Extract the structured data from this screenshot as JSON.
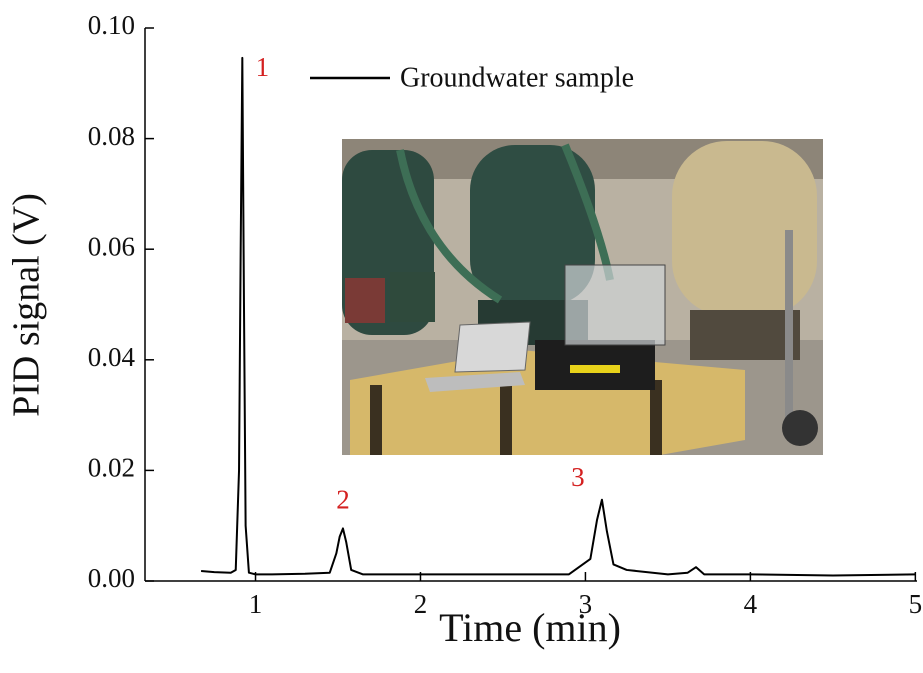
{
  "chart_data": {
    "type": "line",
    "xlabel": "Time (min)",
    "ylabel": "PID signal (V)",
    "xlim": [
      0.33,
      5.01
    ],
    "ylim": [
      0,
      0.1
    ],
    "xticks": [
      1,
      2,
      3,
      4,
      5
    ],
    "yticks": [
      {
        "value": 0,
        "label": "0.00"
      },
      0.02,
      0.04,
      0.06,
      0.08,
      {
        "value": 0.1,
        "label": "0.10"
      }
    ],
    "annotations": [
      "1",
      "2",
      "3"
    ],
    "annotation_color": "#d42020",
    "legend": "upper right",
    "series": [
      {
        "name": "Groundwater sample",
        "color": "#000000",
        "x": [
          0.67,
          0.75,
          0.85,
          0.88,
          0.9,
          0.91,
          0.92,
          0.93,
          0.94,
          0.96,
          1.0,
          1.1,
          1.3,
          1.45,
          1.49,
          1.51,
          1.53,
          1.55,
          1.58,
          1.65,
          1.8,
          2.0,
          2.5,
          2.9,
          3.03,
          3.07,
          3.1,
          3.13,
          3.17,
          3.25,
          3.5,
          3.62,
          3.67,
          3.72,
          4.0,
          4.5,
          5.0
        ],
        "values": [
          0.0018,
          0.0016,
          0.0015,
          0.002,
          0.02,
          0.06,
          0.0946,
          0.05,
          0.01,
          0.0015,
          0.0012,
          0.0012,
          0.0013,
          0.0015,
          0.005,
          0.008,
          0.0095,
          0.007,
          0.002,
          0.0012,
          0.0012,
          0.0012,
          0.0012,
          0.0012,
          0.004,
          0.011,
          0.0147,
          0.009,
          0.003,
          0.002,
          0.0012,
          0.0015,
          0.0025,
          0.0012,
          0.0012,
          0.001,
          0.0012
        ]
      }
    ]
  }
}
